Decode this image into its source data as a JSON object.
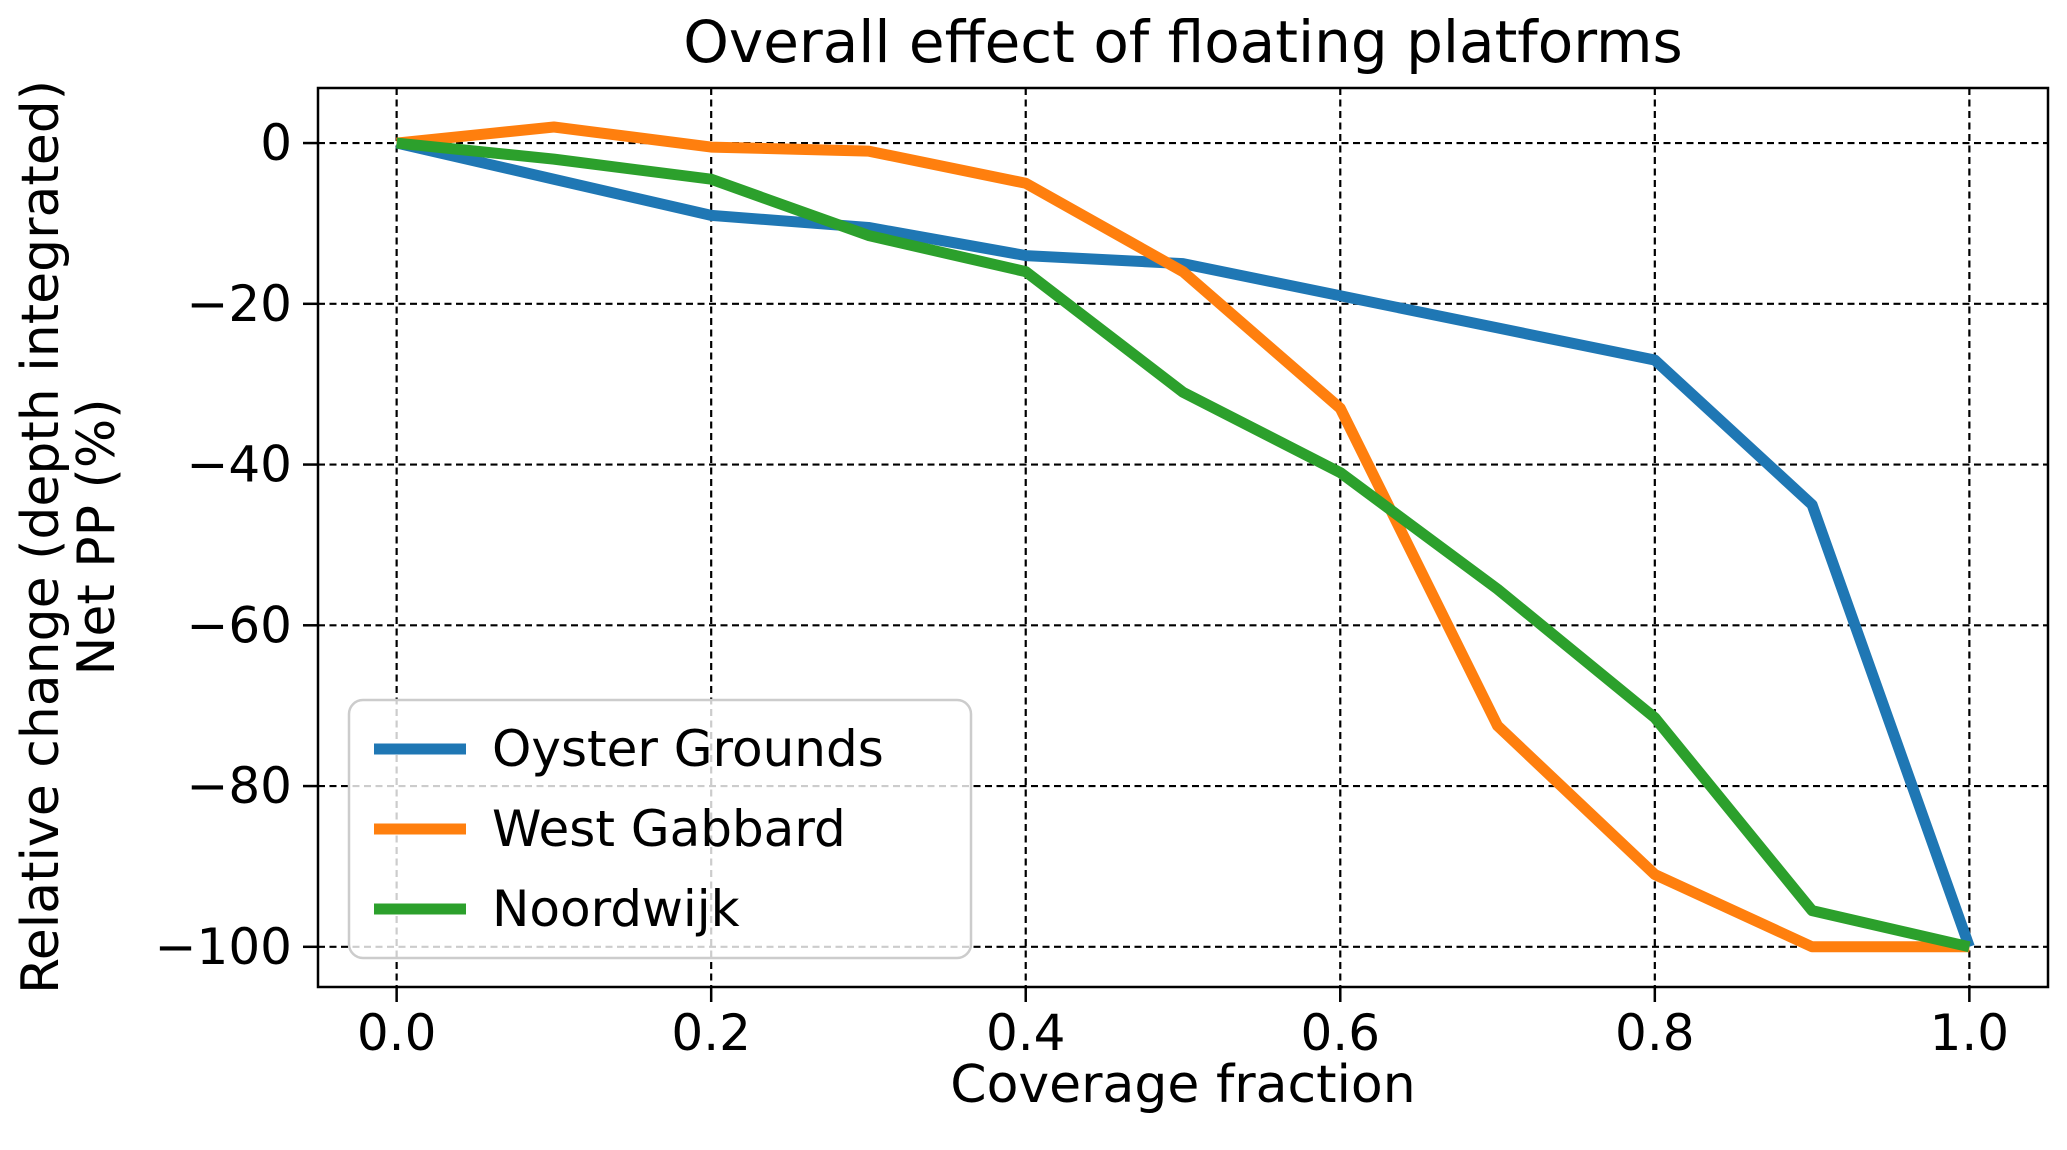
{
  "title": "Overall effect of floating platforms",
  "xlabel": "Coverage fraction",
  "ylabel_line1": "Relative change (depth integrated)",
  "ylabel_line2": "Net PP (%)",
  "chart_data": {
    "type": "line",
    "title": "Overall effect of floating platforms",
    "xlabel": "Coverage fraction",
    "ylabel": "Relative change (depth integrated) Net PP (%)",
    "x": [
      0.0,
      0.1,
      0.2,
      0.3,
      0.4,
      0.5,
      0.6,
      0.7,
      0.8,
      0.9,
      1.0
    ],
    "series": [
      {
        "name": "Oyster Grounds",
        "color": "#1f77b4",
        "values": [
          0,
          -4.5,
          -9,
          -10.5,
          -14,
          -15,
          -19,
          -23,
          -27,
          -45,
          -100
        ]
      },
      {
        "name": "West Gabbard",
        "color": "#ff7f0e",
        "values": [
          0,
          2,
          -0.5,
          -1,
          -5,
          -16,
          -33,
          -72.5,
          -91,
          -100,
          -100
        ]
      },
      {
        "name": "Noordwijk",
        "color": "#2ca02c",
        "values": [
          0,
          -2,
          -4.5,
          -11.5,
          -16,
          -31,
          -41,
          -55.5,
          -71.5,
          -95.5,
          -100
        ]
      }
    ],
    "xticks": [
      0.0,
      0.2,
      0.4,
      0.6,
      0.8,
      1.0
    ],
    "xtick_labels": [
      "0.0",
      "0.2",
      "0.4",
      "0.6",
      "0.8",
      "1.0"
    ],
    "yticks": [
      0,
      -20,
      -40,
      -60,
      -80,
      -100
    ],
    "ytick_labels": [
      "0",
      "−20",
      "−40",
      "−60",
      "−80",
      "−100"
    ],
    "xlim": [
      -0.05,
      1.05
    ],
    "ylim": [
      -105.0,
      6.85
    ],
    "grid": true,
    "grid_style": "dashed",
    "grid_color": "#000000",
    "line_width": 11,
    "legend_position": "lower left",
    "legend_border_color": "#cccccc",
    "legend_background": "rgba(255,255,255,0.8)"
  }
}
